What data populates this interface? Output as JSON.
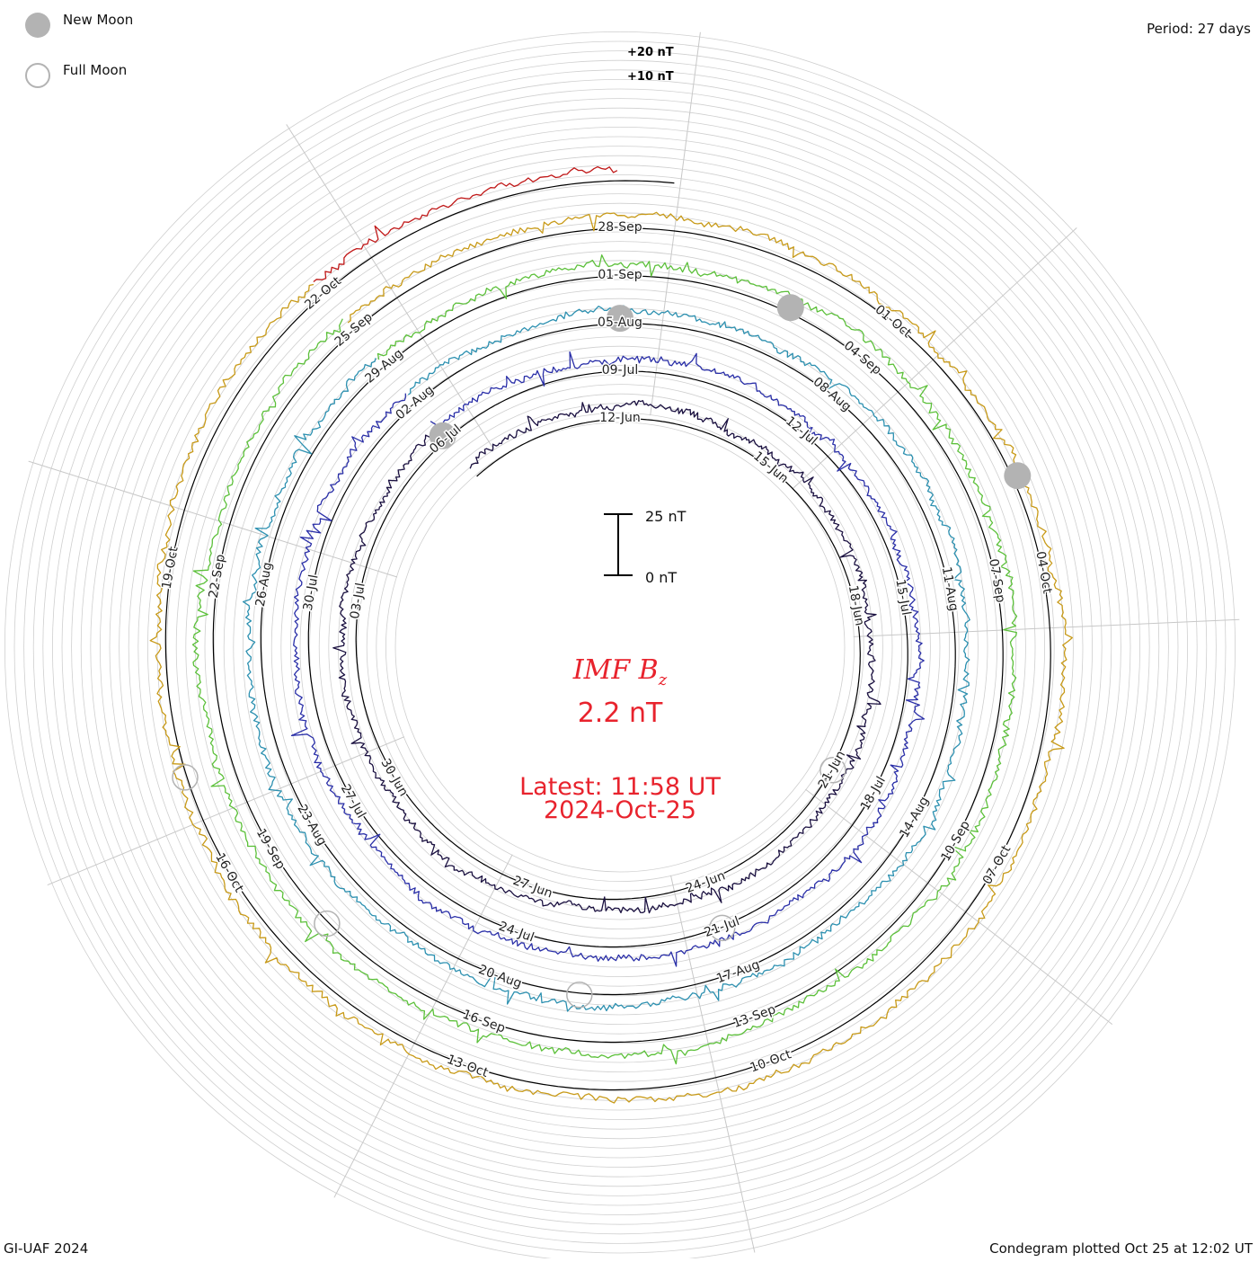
{
  "legend": {
    "new_moon_label": "New Moon",
    "full_moon_label": "Full Moon",
    "new_moon_color": "#b3b3b3",
    "full_moon_color": "#b3b3b3"
  },
  "period_label": "Period: 27 days",
  "footer_left": "GI-UAF 2024",
  "footer_right": "Condegram plotted Oct 25 at 12:02 UT",
  "center": {
    "param_name": "IMF B",
    "param_sub": "z",
    "value_text": "2.2 nT",
    "latest_text": "Latest: 11:58 UT",
    "latest_date": "2024-Oct-25",
    "text_color": "#e8232d"
  },
  "chart_data": {
    "type": "line",
    "title": "IMF Bz",
    "period_days": 27,
    "scale_bar": {
      "top_label": "25 nT",
      "bottom_label": "0 nT",
      "top_value": 25,
      "bottom_value": 0
    },
    "reference_labels": [
      "+20 nT",
      "+10 nT"
    ],
    "date_labels": [
      "12-Jun",
      "15-Jun",
      "18-Jun",
      "21-Jun",
      "24-Jun",
      "27-Jun",
      "30-Jun",
      "03-Jul",
      "06-Jul",
      "09-Jul",
      "12-Jul",
      "15-Jul",
      "18-Jul",
      "21-Jul",
      "24-Jul",
      "27-Jul",
      "30-Jul",
      "02-Aug",
      "05-Aug",
      "08-Aug",
      "11-Aug",
      "14-Aug",
      "17-Aug",
      "20-Aug",
      "23-Aug",
      "26-Aug",
      "29-Aug",
      "01-Sep",
      "04-Sep",
      "07-Sep",
      "10-Sep",
      "13-Sep",
      "16-Sep",
      "19-Sep",
      "22-Sep",
      "25-Sep",
      "28-Sep",
      "01-Oct",
      "04-Oct",
      "07-Oct",
      "10-Oct",
      "13-Oct",
      "16-Oct",
      "19-Oct",
      "22-Oct"
    ],
    "series": [
      {
        "rotation": 1,
        "start": "09-Jun",
        "end": "06-Jul",
        "color": "#1a1040"
      },
      {
        "rotation": 2,
        "start": "06-Jul",
        "end": "02-Aug",
        "color": "#2a2fa8"
      },
      {
        "rotation": 3,
        "start": "02-Aug",
        "end": "29-Aug",
        "color": "#2c90b0"
      },
      {
        "rotation": 4,
        "start": "29-Aug",
        "end": "25-Sep",
        "color": "#5cc03a"
      },
      {
        "rotation": 5,
        "start": "25-Sep",
        "end": "22-Oct",
        "color": "#c89a18"
      },
      {
        "rotation": 6,
        "start": "22-Oct",
        "end": "25-Oct",
        "color": "#c01818"
      }
    ],
    "new_moon_dates": [
      "06-Jul",
      "05-Aug",
      "03-Sep",
      "03-Oct"
    ],
    "full_moon_dates": [
      "21-Jun",
      "21-Jul",
      "19-Aug",
      "18-Sep",
      "17-Oct"
    ],
    "latest_value": 2.2,
    "latest_unit": "nT"
  }
}
